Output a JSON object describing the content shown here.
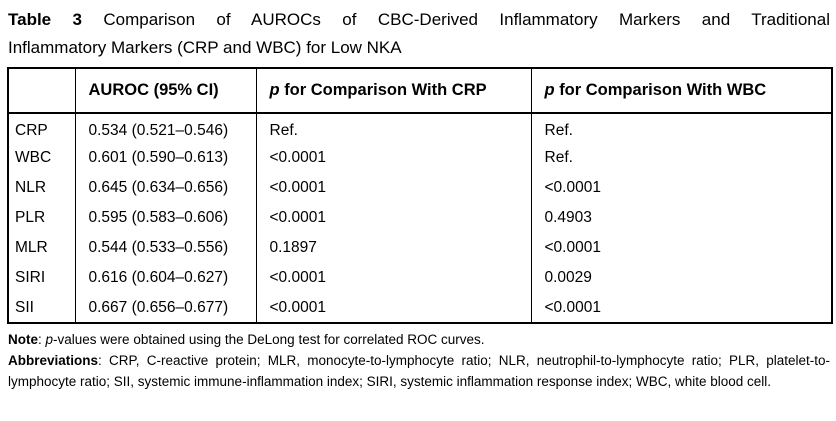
{
  "title": {
    "label": "Table 3",
    "line1": "Comparison of AUROCs of CBC-Derived Inflammatory Markers and Traditional",
    "line2": "Inflammatory Markers (CRP and WBC) for Low NKA"
  },
  "table": {
    "headers": {
      "marker": "",
      "auroc": "AUROC (95% CI)",
      "p_symbol": "p",
      "p_crp_rest": "for Comparison With CRP",
      "p_wbc_rest": "for Comparison With WBC"
    },
    "rows": [
      {
        "marker": "CRP",
        "auroc": "0.534 (0.521–0.546)",
        "p_crp": "Ref.",
        "p_wbc": "Ref."
      },
      {
        "marker": "WBC",
        "auroc": "0.601 (0.590–0.613)",
        "p_crp": "<0.0001",
        "p_wbc": "Ref."
      },
      {
        "marker": "NLR",
        "auroc": "0.645 (0.634–0.656)",
        "p_crp": "<0.0001",
        "p_wbc": "<0.0001"
      },
      {
        "marker": "PLR",
        "auroc": "0.595 (0.583–0.606)",
        "p_crp": "<0.0001",
        "p_wbc": "0.4903"
      },
      {
        "marker": "MLR",
        "auroc": "0.544 (0.533–0.556)",
        "p_crp": "0.1897",
        "p_wbc": "<0.0001"
      },
      {
        "marker": "SIRI",
        "auroc": "0.616 (0.604–0.627)",
        "p_crp": "<0.0001",
        "p_wbc": "0.0029"
      },
      {
        "marker": "SII",
        "auroc": "0.667 (0.656–0.677)",
        "p_crp": "<0.0001",
        "p_wbc": "<0.0001"
      }
    ]
  },
  "footnotes": {
    "note_label": "Note",
    "note_sep": ": ",
    "note_p": "p",
    "note_rest": "-values were obtained using the DeLong test for correlated ROC curves.",
    "abbrev_label": "Abbreviations",
    "abbrev_text": ": CRP, C-reactive protein; MLR, monocyte-to-lymphocyte ratio; NLR, neutrophil-to-lymphocyte ratio; PLR, platelet-to-lymphocyte ratio; SII, systemic immune-inflammation index; SIRI, systemic inflammation response index; WBC, white blood cell."
  },
  "colors": {
    "text": "#000000",
    "background": "#ffffff",
    "border": "#000000"
  }
}
